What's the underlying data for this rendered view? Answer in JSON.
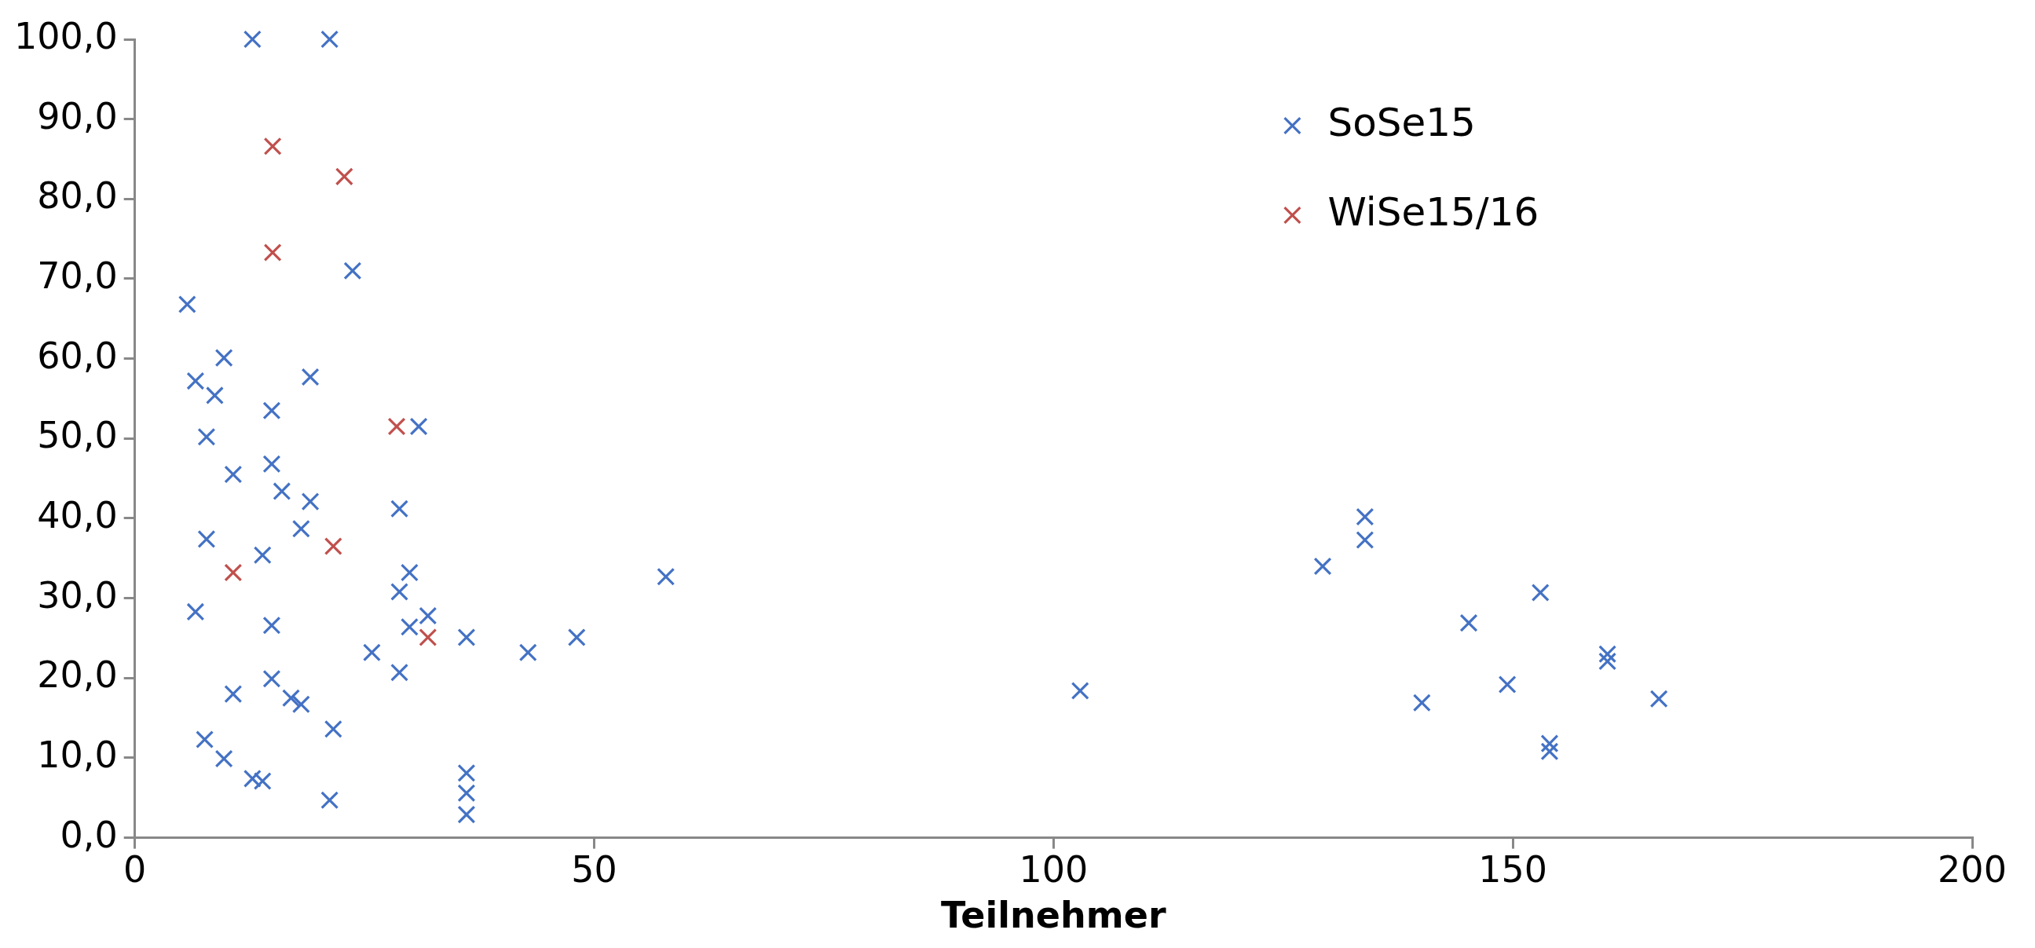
{
  "chart_data": {
    "type": "scatter",
    "xlabel": "Teilnehmer",
    "xlim": [
      0,
      200
    ],
    "xticks": [
      0,
      50,
      100,
      150,
      200
    ],
    "ylim": [
      0,
      100
    ],
    "yticks": [
      {
        "value": 0,
        "label": "0,0"
      },
      {
        "value": 10,
        "label": "10,0"
      },
      {
        "value": 20,
        "label": "20,0"
      },
      {
        "value": 30,
        "label": "30,0"
      },
      {
        "value": 40,
        "label": "40,0"
      },
      {
        "value": 50,
        "label": "50,0"
      },
      {
        "value": 60,
        "label": "60,0"
      },
      {
        "value": 70,
        "label": "70,0"
      },
      {
        "value": 80,
        "label": "80,0"
      },
      {
        "value": 90,
        "label": "90,0"
      },
      {
        "value": 100,
        "label": "100,0"
      }
    ],
    "grid": false,
    "legend": "top right",
    "series": [
      {
        "name": "SoSe15",
        "color": "#4472c4",
        "marker": "cross",
        "x": [
          12.8,
          21.2,
          23.7,
          5.7,
          9.7,
          6.6,
          19.1,
          8.7,
          14.9,
          30.9,
          7.8,
          14.9,
          10.7,
          16.0,
          19.1,
          28.8,
          18.1,
          7.8,
          13.9,
          29.9,
          28.8,
          6.6,
          31.9,
          29.9,
          14.9,
          36.1,
          25.8,
          42.8,
          48.1,
          57.8,
          28.8,
          14.9,
          10.7,
          17.0,
          18.1,
          21.6,
          7.6,
          9.7,
          12.8,
          13.9,
          21.2,
          36.1,
          36.1,
          36.1,
          102.9,
          129.3,
          133.9,
          133.9,
          140.1,
          145.2,
          149.4,
          153.0,
          154.0,
          154.0,
          160.3,
          160.3,
          165.9
        ],
        "values": [
          100,
          100,
          71.0,
          66.8,
          60.1,
          57.2,
          57.7,
          55.4,
          53.5,
          51.5,
          50.2,
          46.8,
          45.5,
          43.4,
          42.1,
          41.2,
          38.7,
          37.4,
          35.4,
          33.2,
          30.8,
          28.3,
          27.8,
          26.4,
          26.6,
          25.1,
          23.2,
          23.2,
          25.1,
          32.7,
          20.7,
          19.9,
          18.0,
          17.5,
          16.7,
          13.6,
          12.3,
          9.9,
          7.4,
          7.1,
          4.7,
          8.1,
          5.6,
          2.9,
          18.4,
          34.0,
          40.2,
          37.3,
          16.9,
          26.9,
          19.2,
          30.7,
          11.8,
          10.8,
          23.0,
          22.1,
          17.4
        ]
      },
      {
        "name": "WiSe15/16",
        "color": "#c0504d",
        "marker": "cross",
        "x": [
          15.0,
          22.8,
          15.0,
          28.5,
          21.6,
          10.7,
          31.9
        ],
        "values": [
          86.6,
          82.8,
          73.3,
          51.5,
          36.5,
          33.2,
          25.1
        ]
      }
    ]
  }
}
